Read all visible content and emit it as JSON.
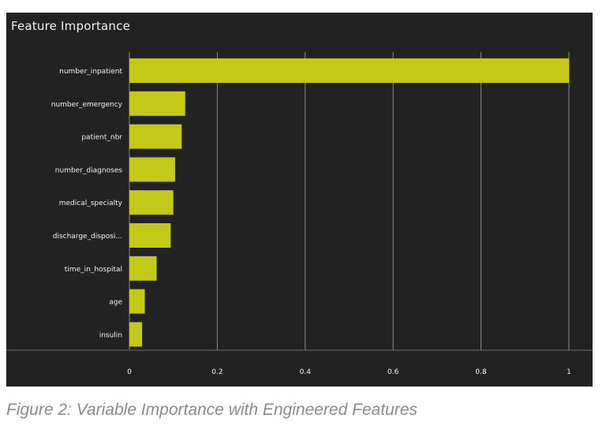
{
  "chart_data": {
    "type": "bar",
    "orientation": "horizontal",
    "title": "Feature Importance",
    "categories": [
      "number_inpatient",
      "number_emergency",
      "patient_nbr",
      "number_diagnoses",
      "medical_specialty",
      "discharge_disposi...",
      "time_in_hospital",
      "age",
      "insulin"
    ],
    "values": [
      1.0,
      0.127,
      0.119,
      0.104,
      0.1,
      0.094,
      0.062,
      0.035,
      0.029
    ],
    "x_ticks": [
      "0",
      "0.2",
      "0.4",
      "0.6",
      "0.8",
      "1"
    ],
    "xlim": [
      0,
      1
    ],
    "grid": "vertical",
    "colors": {
      "background": "#222222",
      "bar": "#c3c916",
      "grid": "#8c8c8c",
      "text": "#f2f2f2"
    }
  },
  "caption": "Figure 2: Variable Importance with Engineered Features"
}
